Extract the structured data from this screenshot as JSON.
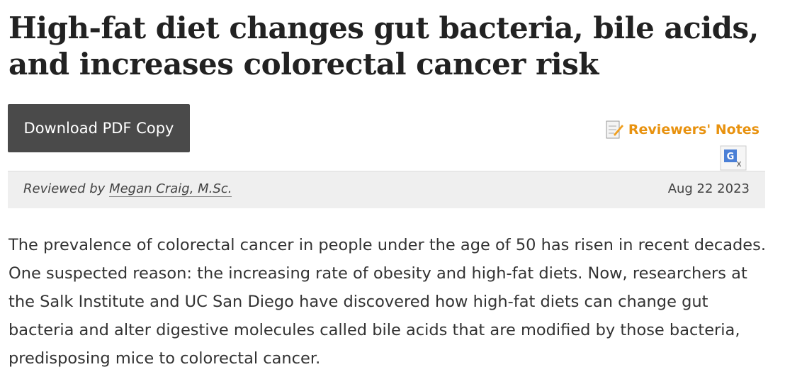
{
  "header": {
    "title": "High-fat diet changes gut bacteria, bile acids, and increases colorectal cancer risk"
  },
  "actions": {
    "download": "Download PDF Copy",
    "reviewers_notes": "Reviewers' Notes"
  },
  "byline": {
    "prefix": "Reviewed by",
    "reviewer": "Megan Craig, M.Sc.",
    "date": "Aug 22 2023"
  },
  "body": {
    "paragraph": "The prevalence of colorectal cancer in people under the age of 50 has risen in recent decades. One suspected reason: the increasing rate of obesity and high-fat diets. Now, researchers at the Salk Institute and UC San Diego have discovered how high-fat diets can change gut bacteria and alter digestive molecules called bile acids that are modified by those bacteria, predisposing mice to colorectal cancer."
  }
}
